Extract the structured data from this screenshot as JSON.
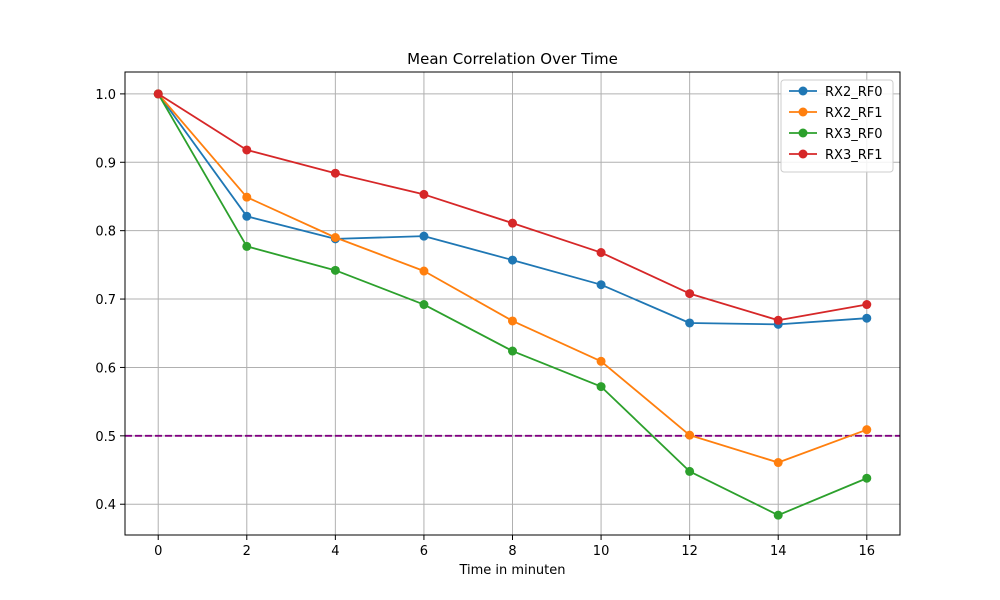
{
  "chart_data": {
    "type": "line",
    "title": "Mean Correlation Over Time",
    "xlabel": "Time in minuten",
    "ylabel": "",
    "x": [
      0,
      2,
      4,
      6,
      8,
      10,
      12,
      14,
      16
    ],
    "xlim": [
      -0.75,
      16.75
    ],
    "ylim": [
      0.355,
      1.032
    ],
    "xticks": [
      0,
      2,
      4,
      6,
      8,
      10,
      12,
      14,
      16
    ],
    "yticks": [
      0.4,
      0.5,
      0.6,
      0.7,
      0.8,
      0.9,
      1.0
    ],
    "ytick_labels": [
      "0.4",
      "0.5",
      "0.6",
      "0.7",
      "0.8",
      "0.9",
      "1.0"
    ],
    "grid": true,
    "legend_position": "upper right",
    "series": [
      {
        "name": "RX2_RF0",
        "color": "#1f77b4",
        "values": [
          1.0,
          0.821,
          0.788,
          0.792,
          0.757,
          0.721,
          0.665,
          0.663,
          0.672
        ]
      },
      {
        "name": "RX2_RF1",
        "color": "#ff7f0e",
        "values": [
          1.0,
          0.849,
          0.79,
          0.741,
          0.668,
          0.609,
          0.501,
          0.461,
          0.509
        ]
      },
      {
        "name": "RX3_RF0",
        "color": "#2ca02c",
        "values": [
          1.0,
          0.777,
          0.742,
          0.692,
          0.624,
          0.572,
          0.448,
          0.384,
          0.438
        ]
      },
      {
        "name": "RX3_RF1",
        "color": "#d62728",
        "values": [
          1.0,
          0.918,
          0.884,
          0.853,
          0.811,
          0.768,
          0.708,
          0.669,
          0.692
        ]
      }
    ],
    "reference_line": {
      "y": 0.5,
      "color": "#800080",
      "style": "dashed"
    }
  }
}
